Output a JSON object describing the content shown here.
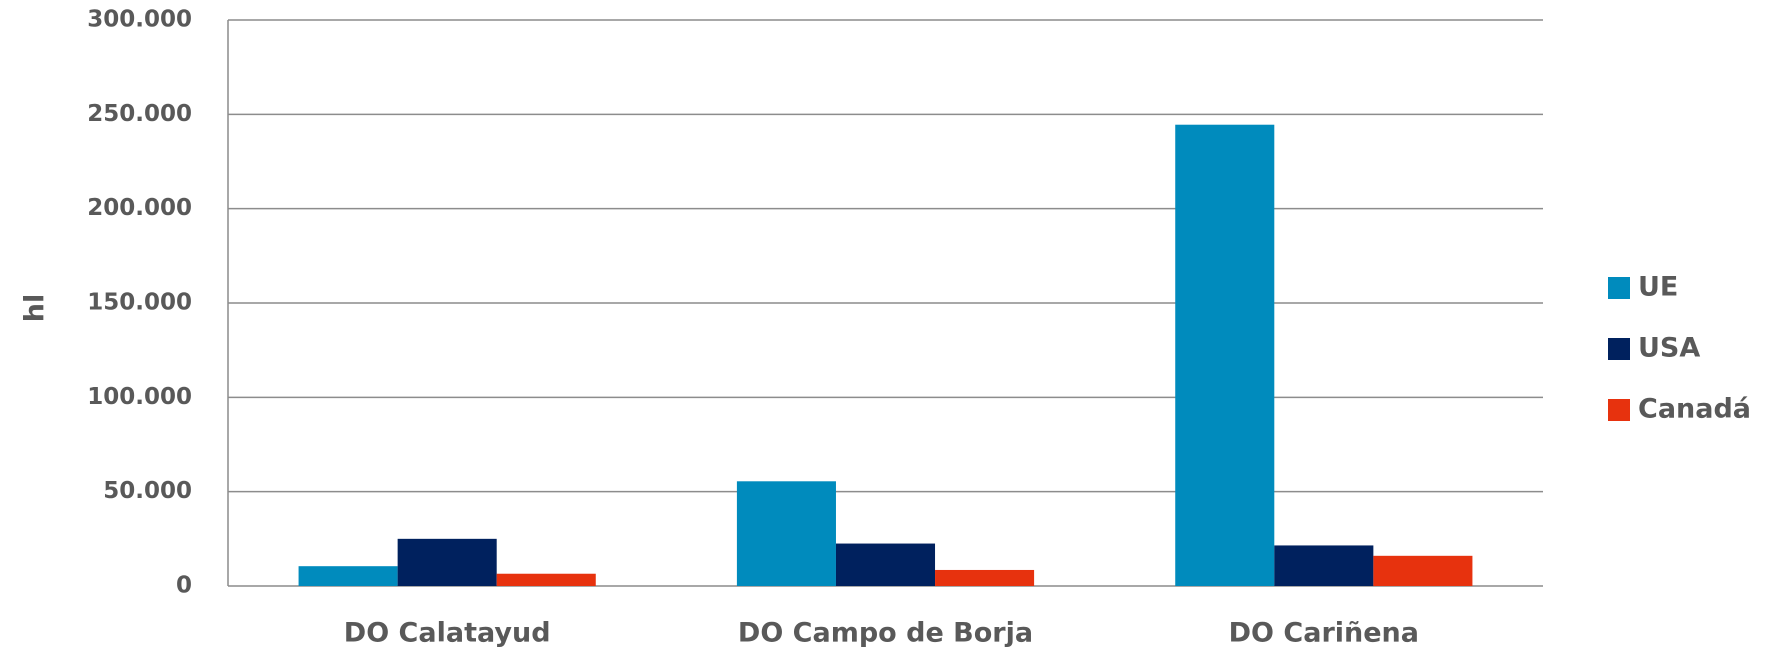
{
  "chart_data": {
    "type": "bar",
    "y_label": "hl",
    "categories": [
      "DO Calatayud",
      "DO Campo de Borja",
      "DO Cariñena"
    ],
    "series": [
      {
        "name": "UE",
        "color": "#008bbd",
        "values": [
          10500,
          55500,
          244500
        ]
      },
      {
        "name": "USA",
        "color": "#00215e",
        "values": [
          25000,
          22500,
          21500
        ]
      },
      {
        "name": "Canadá",
        "color": "#e7320e",
        "values": [
          6500,
          8500,
          16000
        ]
      }
    ],
    "ylim": [
      0,
      300000
    ],
    "yticks": [
      0,
      {
        "value": 50000,
        "label": "50.000"
      },
      {
        "value": 100000,
        "label": "100.000"
      },
      {
        "value": 150000,
        "label": "150.000"
      },
      {
        "value": 200000,
        "label": "200.000"
      },
      {
        "value": 250000,
        "label": "250.000"
      },
      {
        "value": 300000,
        "label": "300.000"
      }
    ],
    "grid": true,
    "legend": "right"
  }
}
